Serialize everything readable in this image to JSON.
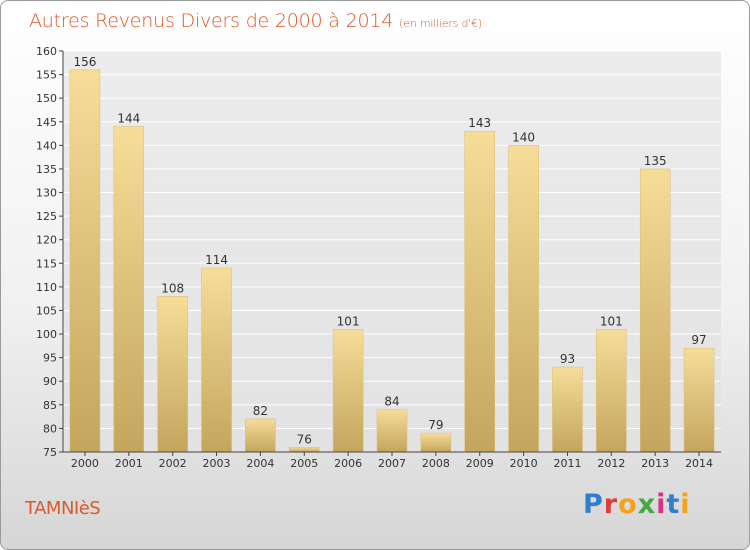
{
  "header": {
    "title": "Autres Revenus Divers de 2000 à 2014",
    "unit": "(en milliers d'€)"
  },
  "footer": {
    "commune": "TAMNIèS",
    "logo_letters": [
      "P",
      "r",
      "o",
      "x",
      "i",
      "t",
      "i"
    ],
    "logo_colors": [
      "#2f7fd0",
      "#e23a3a",
      "#f2a21b",
      "#43a83d",
      "#d63384",
      "#2f7fd0",
      "#f2a21b"
    ]
  },
  "chart_data": {
    "type": "bar",
    "categories": [
      "2000",
      "2001",
      "2002",
      "2003",
      "2004",
      "2005",
      "2006",
      "2007",
      "2008",
      "2009",
      "2010",
      "2011",
      "2012",
      "2013",
      "2014"
    ],
    "values": [
      156,
      144,
      108,
      114,
      82,
      76,
      101,
      84,
      79,
      143,
      140,
      93,
      101,
      135,
      97
    ],
    "title": "Autres Revenus Divers de 2000 à 2014",
    "subtitle": "(en milliers d'€)",
    "xlabel": "",
    "ylabel": "",
    "ylim": [
      75,
      160
    ],
    "yticks": [
      75,
      80,
      85,
      90,
      95,
      100,
      105,
      110,
      115,
      120,
      125,
      130,
      135,
      140,
      145,
      150,
      155,
      160
    ],
    "grid": true,
    "data_labels": true,
    "bar_color": "#e8cf8a"
  }
}
